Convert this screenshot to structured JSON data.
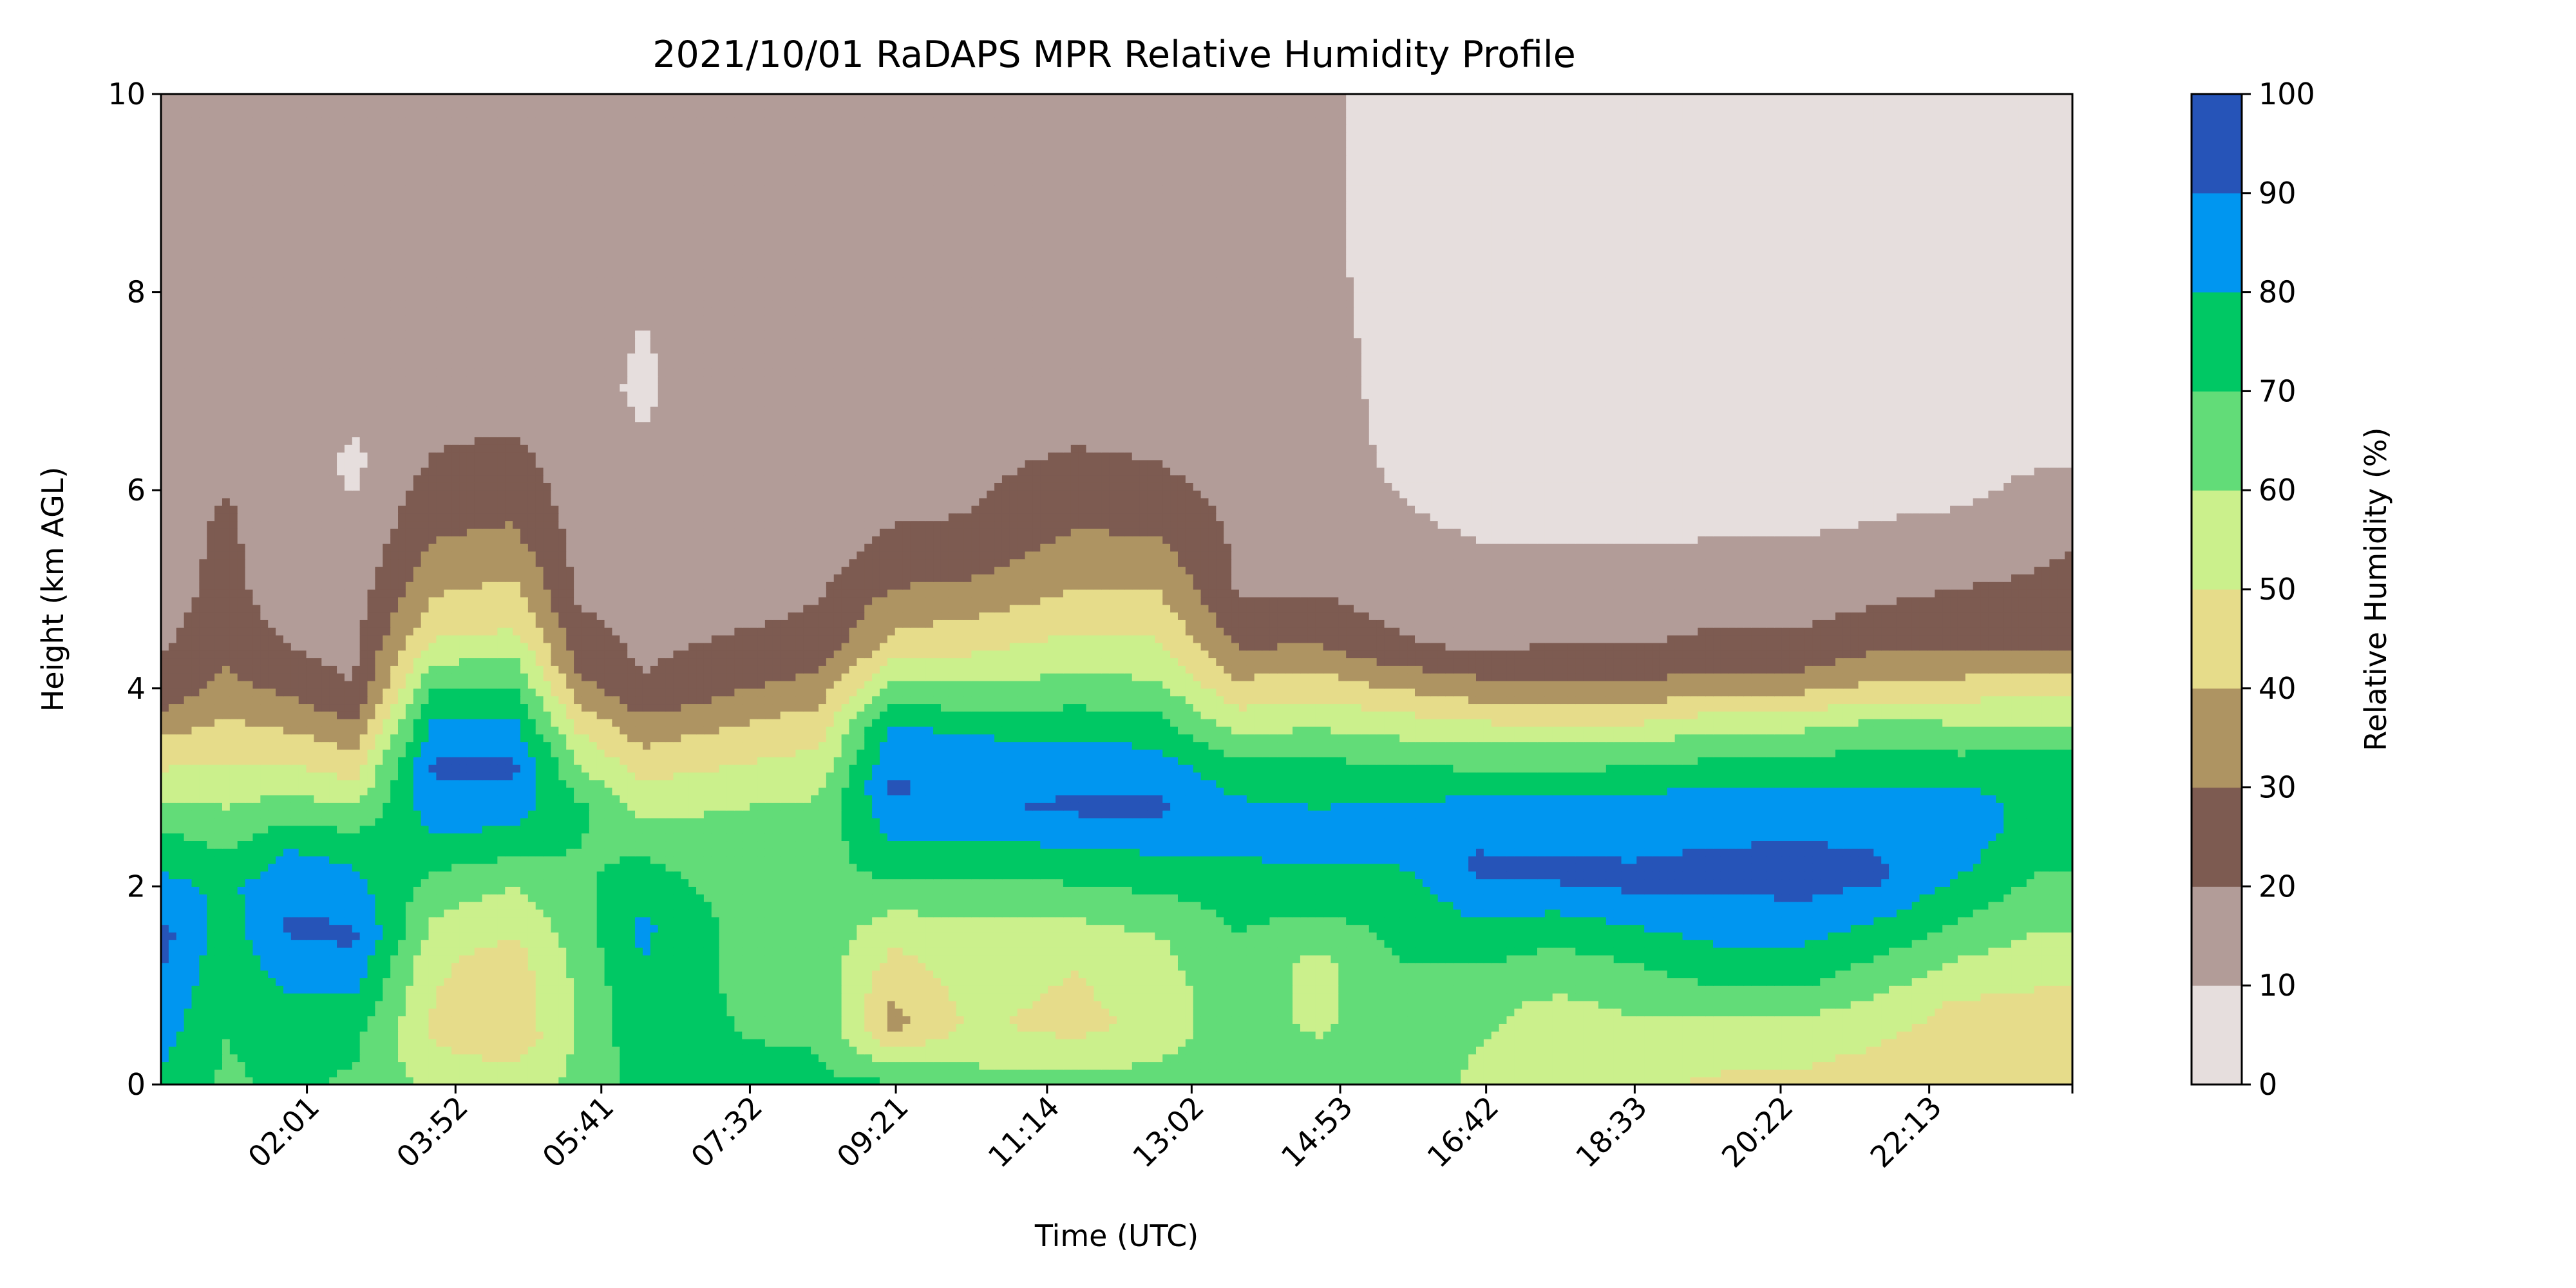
{
  "chart_data": {
    "type": "heatmap",
    "subtype": "filled-contour",
    "title": "2021/10/01 RaDAPS MPR Relative Humidity Profile",
    "xlabel": "Time (UTC)",
    "ylabel": "Height (km AGL)",
    "colorbar_label": "Relative Humidity (%)",
    "x_range_hours": [
      0.2,
      24.0
    ],
    "ylim": [
      0,
      10
    ],
    "x_ticks": [
      {
        "label": "02:01",
        "hour": 2.017
      },
      {
        "label": "03:52",
        "hour": 3.867
      },
      {
        "label": "05:41",
        "hour": 5.683
      },
      {
        "label": "07:32",
        "hour": 7.533
      },
      {
        "label": "09:21",
        "hour": 9.35
      },
      {
        "label": "11:14",
        "hour": 11.233
      },
      {
        "label": "13:02",
        "hour": 13.033
      },
      {
        "label": "14:53",
        "hour": 14.883
      },
      {
        "label": "16:42",
        "hour": 16.7
      },
      {
        "label": "18:33",
        "hour": 18.55
      },
      {
        "label": "20:22",
        "hour": 20.367
      },
      {
        "label": "22:13",
        "hour": 22.217
      }
    ],
    "y_ticks": [
      0,
      2,
      4,
      6,
      8,
      10
    ],
    "levels": [
      0,
      10,
      20,
      30,
      40,
      50,
      60,
      70,
      80,
      90,
      100
    ],
    "level_colors": [
      "#e6dedd",
      "#b29c98",
      "#7d5b51",
      "#ae9462",
      "#e6dc8a",
      "#cbf08c",
      "#62dc78",
      "#00c864",
      "#0096f0",
      "#2654b8"
    ],
    "colorbar_ticks": [
      "0",
      "10",
      "20",
      "30",
      "40",
      "50",
      "60",
      "70",
      "80",
      "90",
      "100"
    ],
    "profiles": [
      {
        "hour": 0.2,
        "rh_at_km": [
          [
            0,
            78
          ],
          [
            0.5,
            84
          ],
          [
            1.5,
            94
          ],
          [
            2.5,
            72
          ],
          [
            3.5,
            40
          ],
          [
            4,
            22
          ],
          [
            5,
            16
          ],
          [
            10,
            14
          ]
        ]
      },
      {
        "hour": 1.0,
        "rh_at_km": [
          [
            0,
            68
          ],
          [
            1,
            72
          ],
          [
            2,
            78
          ],
          [
            2.8,
            60
          ],
          [
            3.6,
            42
          ],
          [
            4.5,
            24
          ],
          [
            5.8,
            21
          ],
          [
            6.5,
            15
          ],
          [
            10,
            14
          ]
        ]
      },
      {
        "hour": 1.8,
        "rh_at_km": [
          [
            0,
            72
          ],
          [
            0.8,
            78
          ],
          [
            1.6,
            92
          ],
          [
            2.3,
            82
          ],
          [
            3,
            58
          ],
          [
            3.7,
            36
          ],
          [
            4.2,
            22
          ],
          [
            5,
            15
          ],
          [
            10,
            13
          ]
        ]
      },
      {
        "hour": 2.6,
        "rh_at_km": [
          [
            0,
            68
          ],
          [
            0.6,
            74
          ],
          [
            1.5,
            92
          ],
          [
            2.4,
            76
          ],
          [
            3,
            52
          ],
          [
            3.6,
            32
          ],
          [
            4,
            20
          ],
          [
            5,
            15
          ],
          [
            6.3,
            8
          ],
          [
            7,
            14
          ],
          [
            10,
            13
          ]
        ]
      },
      {
        "hour": 3.6,
        "rh_at_km": [
          [
            0,
            58
          ],
          [
            0.5,
            48
          ],
          [
            1.3,
            52
          ],
          [
            2,
            66
          ],
          [
            2.6,
            82
          ],
          [
            3.2,
            92
          ],
          [
            3.8,
            78
          ],
          [
            4.6,
            46
          ],
          [
            5.5,
            30
          ],
          [
            6.3,
            21
          ],
          [
            7,
            14
          ],
          [
            10,
            13
          ]
        ]
      },
      {
        "hour": 4.6,
        "rh_at_km": [
          [
            0,
            56
          ],
          [
            0.5,
            42
          ],
          [
            1.3,
            46
          ],
          [
            2,
            60
          ],
          [
            2.6,
            80
          ],
          [
            3.2,
            92
          ],
          [
            3.8,
            78
          ],
          [
            4.6,
            50
          ],
          [
            5.5,
            32
          ],
          [
            6.5,
            21
          ],
          [
            7,
            14
          ],
          [
            10,
            12
          ]
        ]
      },
      {
        "hour": 5.4,
        "rh_at_km": [
          [
            0,
            62
          ],
          [
            1,
            62
          ],
          [
            2,
            68
          ],
          [
            2.8,
            72
          ],
          [
            3.5,
            52
          ],
          [
            4.2,
            28
          ],
          [
            5,
            18
          ],
          [
            7,
            12
          ],
          [
            10,
            12
          ]
        ]
      },
      {
        "hour": 6.2,
        "rh_at_km": [
          [
            0,
            74
          ],
          [
            0.8,
            78
          ],
          [
            1.6,
            82
          ],
          [
            2.4,
            68
          ],
          [
            3,
            52
          ],
          [
            3.6,
            34
          ],
          [
            4,
            21
          ],
          [
            5,
            14
          ],
          [
            7,
            9
          ],
          [
            10,
            13
          ]
        ]
      },
      {
        "hour": 7.4,
        "rh_at_km": [
          [
            0,
            72
          ],
          [
            1,
            68
          ],
          [
            2,
            66
          ],
          [
            2.8,
            60
          ],
          [
            3.5,
            44
          ],
          [
            4.1,
            26
          ],
          [
            5,
            15
          ],
          [
            6,
            14
          ],
          [
            10,
            14
          ]
        ]
      },
      {
        "hour": 8.4,
        "rh_at_km": [
          [
            0,
            72
          ],
          [
            1,
            66
          ],
          [
            2,
            68
          ],
          [
            2.8,
            62
          ],
          [
            3.6,
            46
          ],
          [
            4.4,
            24
          ],
          [
            5.5,
            15
          ],
          [
            10,
            14
          ]
        ]
      },
      {
        "hour": 9.3,
        "rh_at_km": [
          [
            0,
            72
          ],
          [
            0.6,
            36
          ],
          [
            1.5,
            52
          ],
          [
            2.2,
            74
          ],
          [
            3,
            92
          ],
          [
            3.6,
            82
          ],
          [
            4.4,
            44
          ],
          [
            5.2,
            26
          ],
          [
            5.8,
            18
          ],
          [
            10,
            13
          ]
        ]
      },
      {
        "hour": 10.3,
        "rh_at_km": [
          [
            0,
            64
          ],
          [
            0.6,
            52
          ],
          [
            1.5,
            56
          ],
          [
            2.2,
            72
          ],
          [
            2.8,
            88
          ],
          [
            3.4,
            84
          ],
          [
            4.2,
            54
          ],
          [
            5,
            32
          ],
          [
            5.6,
            21
          ],
          [
            7,
            15
          ],
          [
            10,
            14
          ]
        ]
      },
      {
        "hour": 11.6,
        "rh_at_km": [
          [
            0,
            64
          ],
          [
            0.6,
            46
          ],
          [
            1.4,
            52
          ],
          [
            2.1,
            72
          ],
          [
            2.8,
            92
          ],
          [
            3.4,
            82
          ],
          [
            4.3,
            56
          ],
          [
            5.2,
            36
          ],
          [
            6,
            24
          ],
          [
            7,
            15
          ],
          [
            10,
            14
          ]
        ]
      },
      {
        "hour": 12.6,
        "rh_at_km": [
          [
            0,
            64
          ],
          [
            0.6,
            54
          ],
          [
            1.4,
            58
          ],
          [
            2.1,
            74
          ],
          [
            2.8,
            92
          ],
          [
            3.4,
            80
          ],
          [
            4.3,
            54
          ],
          [
            5.2,
            36
          ],
          [
            6,
            22
          ],
          [
            7,
            15
          ],
          [
            10,
            14
          ]
        ]
      },
      {
        "hour": 13.6,
        "rh_at_km": [
          [
            0,
            66
          ],
          [
            1,
            66
          ],
          [
            2,
            74
          ],
          [
            2.6,
            86
          ],
          [
            3.2,
            74
          ],
          [
            3.8,
            50
          ],
          [
            4.4,
            30
          ],
          [
            5,
            19
          ],
          [
            10,
            13
          ]
        ]
      },
      {
        "hour": 14.6,
        "rh_at_km": [
          [
            0,
            68
          ],
          [
            0.6,
            58
          ],
          [
            1.2,
            56
          ],
          [
            1.8,
            72
          ],
          [
            2.5,
            86
          ],
          [
            3.3,
            70
          ],
          [
            4,
            46
          ],
          [
            4.6,
            24
          ],
          [
            5.4,
            15
          ],
          [
            8,
            12
          ],
          [
            10,
            12
          ]
        ]
      },
      {
        "hour": 15.6,
        "rh_at_km": [
          [
            0,
            66
          ],
          [
            1,
            68
          ],
          [
            2,
            76
          ],
          [
            2.6,
            86
          ],
          [
            3.3,
            68
          ],
          [
            3.9,
            44
          ],
          [
            4.4,
            22
          ],
          [
            5.4,
            12
          ],
          [
            6.5,
            8
          ],
          [
            10,
            6
          ]
        ]
      },
      {
        "hour": 16.6,
        "rh_at_km": [
          [
            0,
            58
          ],
          [
            0.8,
            62
          ],
          [
            1.5,
            76
          ],
          [
            2.2,
            92
          ],
          [
            2.8,
            84
          ],
          [
            3.4,
            62
          ],
          [
            4,
            34
          ],
          [
            4.5,
            16
          ],
          [
            6,
            7
          ],
          [
            10,
            6
          ]
        ]
      },
      {
        "hour": 17.6,
        "rh_at_km": [
          [
            0,
            54
          ],
          [
            0.8,
            58
          ],
          [
            1.5,
            72
          ],
          [
            2.1,
            92
          ],
          [
            2.8,
            84
          ],
          [
            3.4,
            62
          ],
          [
            4,
            32
          ],
          [
            4.6,
            16
          ],
          [
            6,
            6
          ],
          [
            10,
            5
          ]
        ]
      },
      {
        "hour": 18.6,
        "rh_at_km": [
          [
            0,
            52
          ],
          [
            0.6,
            58
          ],
          [
            1.3,
            72
          ],
          [
            2,
            92
          ],
          [
            2.8,
            86
          ],
          [
            3.4,
            62
          ],
          [
            4,
            32
          ],
          [
            4.6,
            16
          ],
          [
            6,
            6
          ],
          [
            10,
            5
          ]
        ]
      },
      {
        "hour": 19.6,
        "rh_at_km": [
          [
            0,
            48
          ],
          [
            0.6,
            58
          ],
          [
            1.2,
            76
          ],
          [
            2.1,
            93
          ],
          [
            2.8,
            86
          ],
          [
            3.5,
            64
          ],
          [
            4.1,
            32
          ],
          [
            4.8,
            16
          ],
          [
            6,
            6
          ],
          [
            10,
            5
          ]
        ]
      },
      {
        "hour": 20.6,
        "rh_at_km": [
          [
            0,
            48
          ],
          [
            0.5,
            54
          ],
          [
            1.1,
            74
          ],
          [
            2,
            93
          ],
          [
            2.8,
            88
          ],
          [
            3.5,
            64
          ],
          [
            4.1,
            32
          ],
          [
            4.8,
            16
          ],
          [
            6,
            6
          ],
          [
            10,
            5
          ]
        ]
      },
      {
        "hour": 21.6,
        "rh_at_km": [
          [
            0,
            46
          ],
          [
            0.6,
            52
          ],
          [
            1.3,
            70
          ],
          [
            2.1,
            92
          ],
          [
            2.8,
            86
          ],
          [
            3.6,
            64
          ],
          [
            4.2,
            34
          ],
          [
            5,
            17
          ],
          [
            6,
            7
          ],
          [
            10,
            5
          ]
        ]
      },
      {
        "hour": 22.6,
        "rh_at_km": [
          [
            0,
            44
          ],
          [
            0.8,
            48
          ],
          [
            1.5,
            66
          ],
          [
            2.2,
            82
          ],
          [
            2.9,
            84
          ],
          [
            3.6,
            62
          ],
          [
            4.3,
            32
          ],
          [
            5.2,
            17
          ],
          [
            6,
            8
          ],
          [
            10,
            5
          ]
        ]
      },
      {
        "hour": 23.6,
        "rh_at_km": [
          [
            0,
            46
          ],
          [
            1,
            50
          ],
          [
            1.8,
            64
          ],
          [
            2.6,
            78
          ],
          [
            3.3,
            72
          ],
          [
            3.9,
            50
          ],
          [
            4.5,
            26
          ],
          [
            5.6,
            17
          ],
          [
            6.2,
            10
          ],
          [
            10,
            6
          ]
        ]
      },
      {
        "hour": 24.0,
        "rh_at_km": [
          [
            0,
            46
          ],
          [
            1,
            50
          ],
          [
            1.8,
            64
          ],
          [
            2.6,
            78
          ],
          [
            3.3,
            72
          ],
          [
            3.9,
            50
          ],
          [
            4.5,
            26
          ],
          [
            5.8,
            17
          ],
          [
            6.2,
            10
          ],
          [
            10,
            6
          ]
        ]
      }
    ]
  }
}
